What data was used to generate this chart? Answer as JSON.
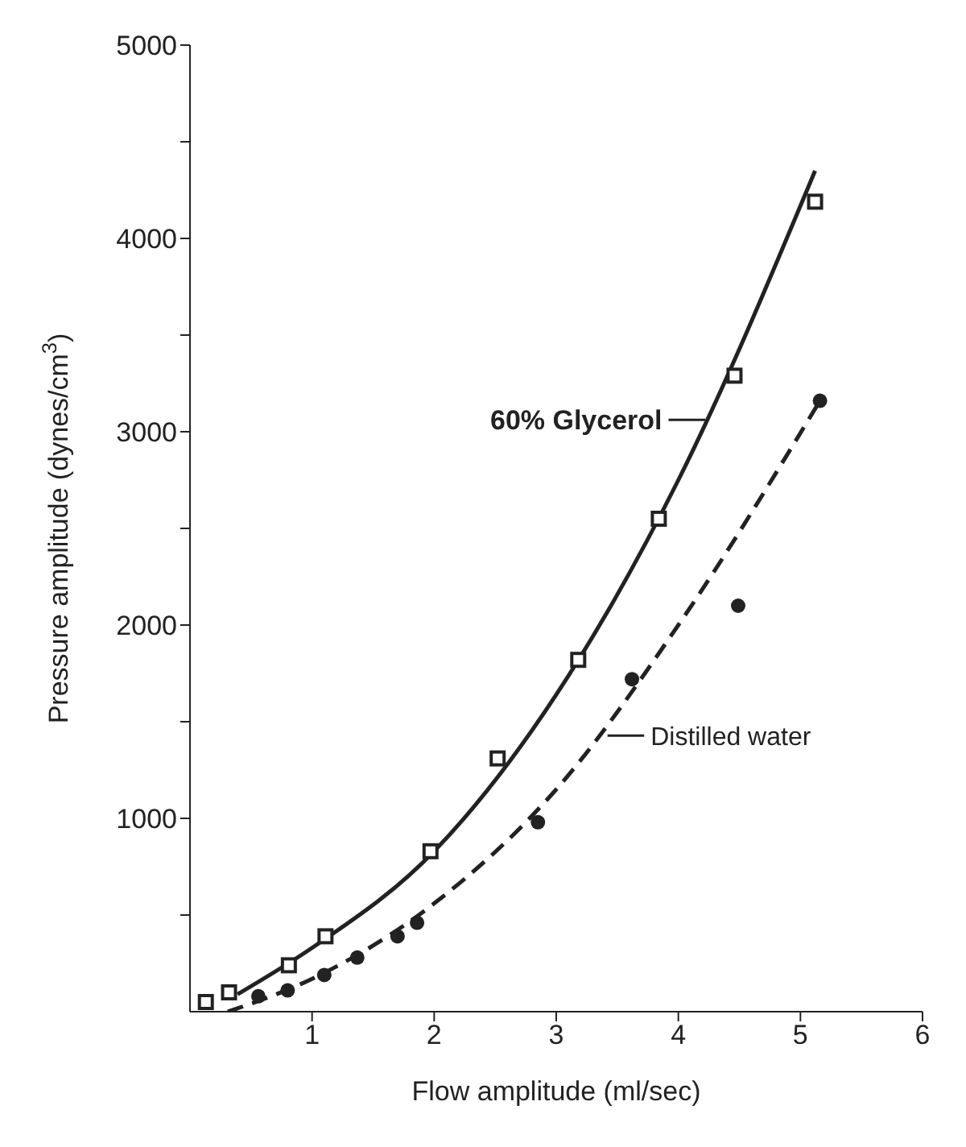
{
  "chart_data": {
    "type": "scatter",
    "xlabel": "Flow amplitude (ml/sec)",
    "ylabel": "Pressure amplitude (dynes/cm$^{3}$)",
    "xlim": [
      0,
      6
    ],
    "xticks": [
      1,
      2,
      3,
      4,
      5,
      6
    ],
    "ylim": [
      0,
      5000
    ],
    "yticks": [
      {
        "value": 500,
        "label": null
      },
      1000,
      {
        "value": 1500,
        "label": null
      },
      2000,
      {
        "value": 2500,
        "label": null
      },
      3000,
      {
        "value": 3500,
        "label": null
      },
      4000,
      {
        "value": 4500,
        "label": null
      },
      5000
    ],
    "grid": false,
    "series": [
      {
        "marker": "square",
        "color": "#222222",
        "x": [
          0.13,
          0.32,
          0.81,
          1.11,
          1.97,
          2.52,
          3.18,
          3.84,
          4.46,
          5.12
        ],
        "values": [
          50,
          100,
          240,
          390,
          830,
          1310,
          1820,
          2550,
          3290,
          4190
        ]
      },
      {
        "marker": "circle",
        "color": "#222222",
        "x": [
          0.56,
          0.8,
          1.1,
          1.37,
          1.7,
          1.86,
          2.85,
          3.62,
          4.49,
          5.16
        ],
        "values": [
          80,
          110,
          190,
          280,
          390,
          460,
          980,
          1720,
          2100,
          3160
        ]
      },
      {
        "type": "line",
        "marker": "none",
        "line_style": "solid",
        "color": "#222222",
        "x": [
          0.39,
          1,
          2,
          3,
          4,
          5.12
        ],
        "values": [
          90,
          330,
          830,
          1640,
          2750,
          4350
        ]
      },
      {
        "type": "line",
        "marker": "none",
        "line_style": "dashed",
        "color": "#222222",
        "x": [
          0.31,
          1,
          2,
          3,
          4,
          5.16
        ],
        "values": [
          0,
          170,
          560,
          1150,
          2000,
          3160
        ]
      }
    ],
    "annotations": [
      {
        "text": "60% Glycerol",
        "x": 4.22,
        "y": 3061
      },
      {
        "text": "Distilled water",
        "x": 3.42,
        "y": 1428
      }
    ]
  }
}
